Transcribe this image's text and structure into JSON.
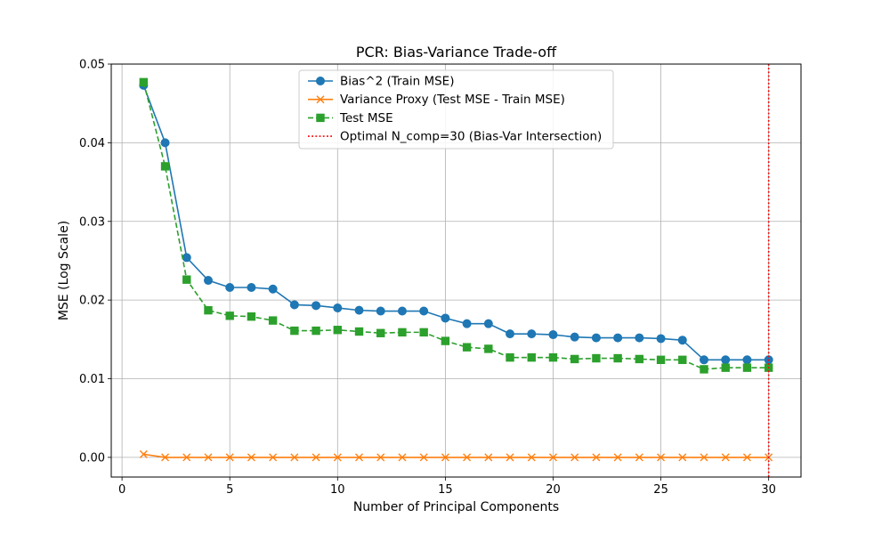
{
  "chart_data": {
    "type": "line",
    "title": "PCR: Bias-Variance Trade-off",
    "xlabel": "Number of Principal Components",
    "ylabel": "MSE (Log Scale)",
    "xlim": [
      -0.5,
      31.5
    ],
    "ylim": [
      -0.0025,
      0.05
    ],
    "x_ticks": [
      0,
      5,
      10,
      15,
      20,
      25,
      30
    ],
    "y_ticks": [
      0.0,
      0.01,
      0.02,
      0.03,
      0.04,
      0.05
    ],
    "y_tick_labels": [
      "0.00",
      "0.01",
      "0.02",
      "0.03",
      "0.04",
      "0.05"
    ],
    "grid": true,
    "legend_position": "top-center",
    "x": [
      1,
      2,
      3,
      4,
      5,
      6,
      7,
      8,
      9,
      10,
      11,
      12,
      13,
      14,
      15,
      16,
      17,
      18,
      19,
      20,
      21,
      22,
      23,
      24,
      25,
      26,
      27,
      28,
      29,
      30
    ],
    "series": [
      {
        "name": "Bias^2 (Train MSE)",
        "color": "#1f77b4",
        "marker": "circle",
        "linestyle": "solid",
        "values": [
          0.0473,
          0.04,
          0.0254,
          0.0225,
          0.0216,
          0.0216,
          0.0214,
          0.0194,
          0.0193,
          0.019,
          0.0187,
          0.0186,
          0.0186,
          0.0186,
          0.0177,
          0.017,
          0.017,
          0.0157,
          0.0157,
          0.0156,
          0.0153,
          0.0152,
          0.0152,
          0.0152,
          0.0151,
          0.0149,
          0.0124,
          0.0124,
          0.0124,
          0.0124
        ]
      },
      {
        "name": "Variance Proxy (Test MSE - Train MSE)",
        "color": "#ff7f0e",
        "marker": "x",
        "linestyle": "solid",
        "values": [
          0.0004,
          0.0,
          0.0,
          0.0,
          0.0,
          0.0,
          0.0,
          0.0,
          0.0,
          0.0,
          0.0,
          0.0,
          0.0,
          0.0,
          0.0,
          0.0,
          0.0,
          0.0,
          0.0,
          0.0,
          0.0,
          0.0,
          0.0,
          0.0,
          0.0,
          0.0,
          0.0,
          0.0,
          0.0,
          0.0
        ]
      },
      {
        "name": "Test MSE",
        "color": "#2ca02c",
        "marker": "square",
        "linestyle": "dashed",
        "values": [
          0.0477,
          0.037,
          0.0226,
          0.0187,
          0.018,
          0.0179,
          0.0174,
          0.0161,
          0.0161,
          0.0162,
          0.016,
          0.0158,
          0.0159,
          0.0159,
          0.0148,
          0.014,
          0.0138,
          0.0127,
          0.0127,
          0.0127,
          0.0125,
          0.0126,
          0.0126,
          0.0125,
          0.0124,
          0.0124,
          0.0112,
          0.0114,
          0.0114,
          0.0114
        ]
      }
    ],
    "vlines": [
      {
        "name": "Optimal N_comp=30 (Bias-Var Intersection)",
        "x": 30,
        "color": "#ff0000",
        "linestyle": "dotted"
      }
    ]
  }
}
